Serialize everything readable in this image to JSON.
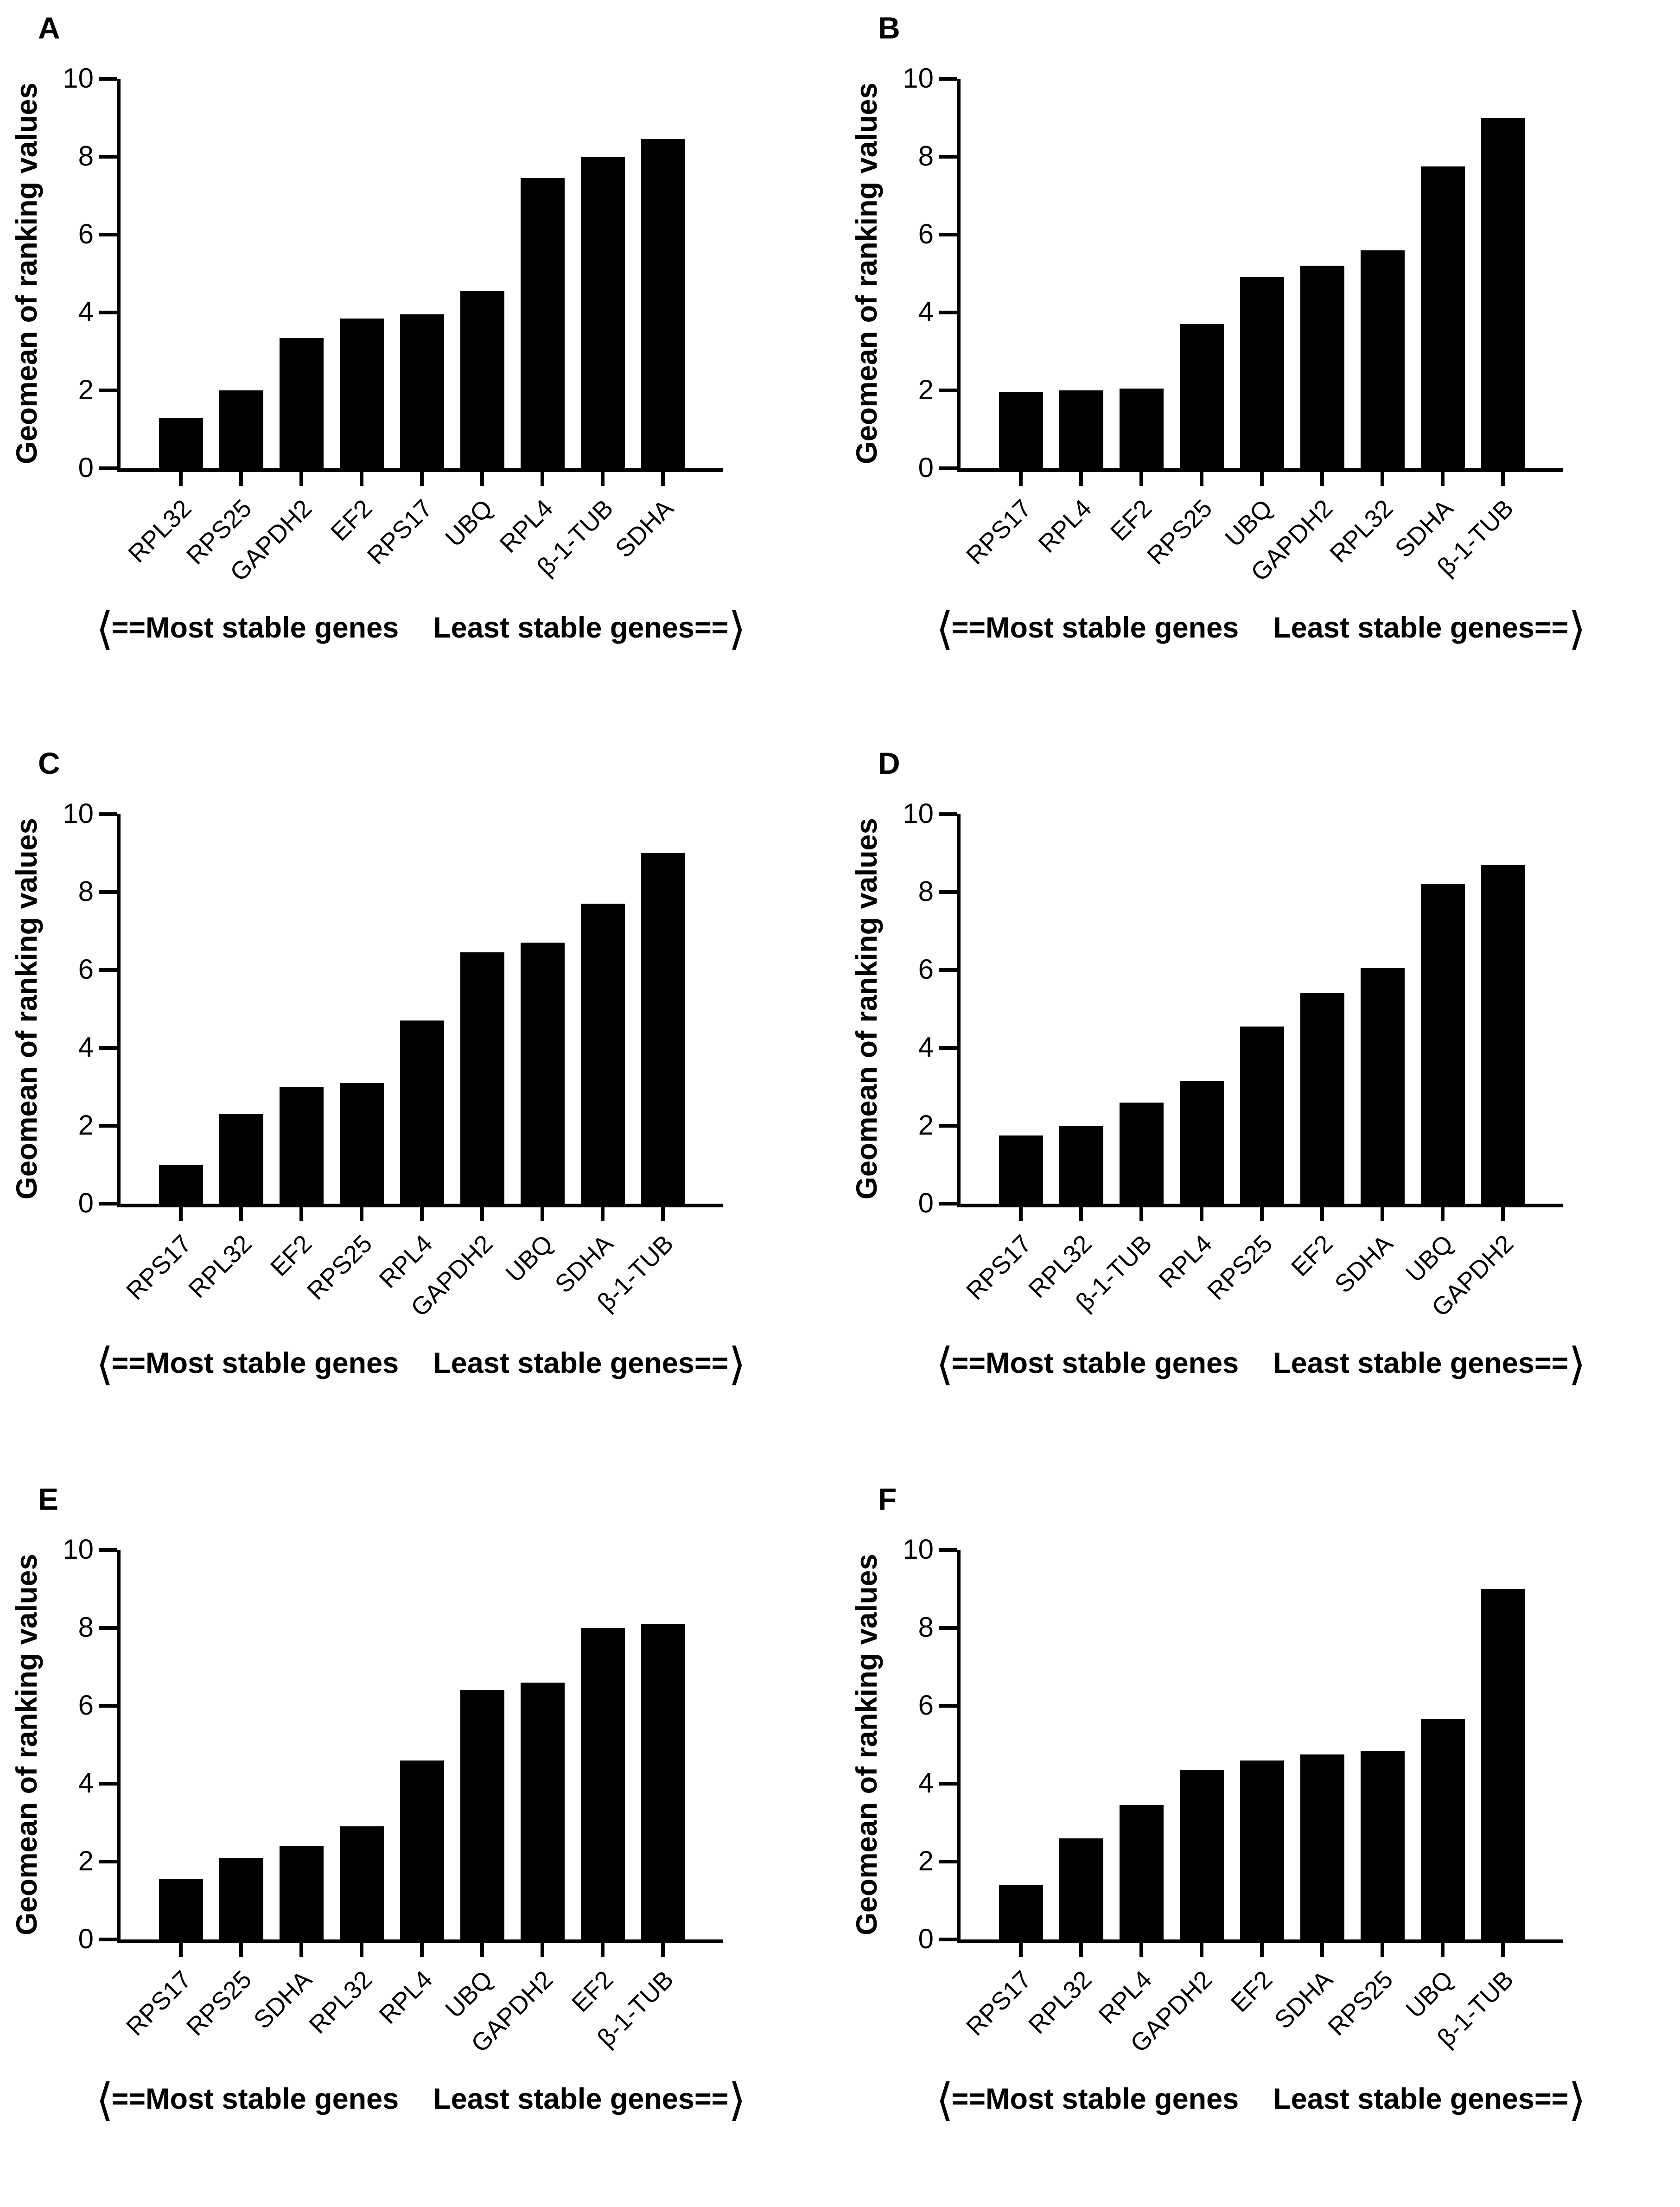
{
  "figure": {
    "footer": {
      "left_bracket": "⟨",
      "left_text": "==Most stable genes",
      "right_text": "Least stable genes==",
      "right_bracket": "⟩"
    },
    "bar_color": "#000000",
    "background_color": "#ffffff",
    "text_color": "#000000"
  },
  "chart_data": [
    {
      "type": "bar",
      "panel_label": "A",
      "ylabel": "Geomean of ranking values",
      "xlabel": "",
      "ylim": [
        0,
        10
      ],
      "yticks": [
        0,
        2,
        4,
        6,
        8,
        10
      ],
      "grid": false,
      "legend": "none",
      "categories": [
        "RPL32",
        "RPS25",
        "GAPDH2",
        "EF2",
        "RPS17",
        "UBQ",
        "RPL4",
        "β-1-TUB",
        "SDHA"
      ],
      "values": [
        1.3,
        2.0,
        3.35,
        3.85,
        3.95,
        4.55,
        7.45,
        8.0,
        8.45
      ],
      "annotation": "⟨==Most stable genes   Least stable genes==⟩"
    },
    {
      "type": "bar",
      "panel_label": "B",
      "ylabel": "Geomean of ranking values",
      "xlabel": "",
      "ylim": [
        0,
        10
      ],
      "yticks": [
        0,
        2,
        4,
        6,
        8,
        10
      ],
      "grid": false,
      "legend": "none",
      "categories": [
        "RPS17",
        "RPL4",
        "EF2",
        "RPS25",
        "UBQ",
        "GAPDH2",
        "RPL32",
        "SDHA",
        "β-1-TUB"
      ],
      "values": [
        1.95,
        2.0,
        2.05,
        3.7,
        4.9,
        5.2,
        5.6,
        7.75,
        9.0
      ],
      "annotation": "⟨==Most stable genes   Least stable genes==⟩"
    },
    {
      "type": "bar",
      "panel_label": "C",
      "ylabel": "Geomean of ranking values",
      "xlabel": "",
      "ylim": [
        0,
        10
      ],
      "yticks": [
        0,
        2,
        4,
        6,
        8,
        10
      ],
      "grid": false,
      "legend": "none",
      "categories": [
        "RPS17",
        "RPL32",
        "EF2",
        "RPS25",
        "RPL4",
        "GAPDH2",
        "UBQ",
        "SDHA",
        "β-1-TUB"
      ],
      "values": [
        1.0,
        2.3,
        3.0,
        3.1,
        4.7,
        6.45,
        6.7,
        7.7,
        9.0
      ],
      "annotation": "⟨==Most stable genes   Least stable genes==⟩"
    },
    {
      "type": "bar",
      "panel_label": "D",
      "ylabel": "Geomean of ranking values",
      "xlabel": "",
      "ylim": [
        0,
        10
      ],
      "yticks": [
        0,
        2,
        4,
        6,
        8,
        10
      ],
      "grid": false,
      "legend": "none",
      "categories": [
        "RPS17",
        "RPL32",
        "β-1-TUB",
        "RPL4",
        "RPS25",
        "EF2",
        "SDHA",
        "UBQ",
        "GAPDH2"
      ],
      "values": [
        1.75,
        2.0,
        2.6,
        3.15,
        4.55,
        5.4,
        6.05,
        8.2,
        8.7
      ],
      "annotation": "⟨==Most stable genes   Least stable genes==⟩"
    },
    {
      "type": "bar",
      "panel_label": "E",
      "ylabel": "Geomean of ranking values",
      "xlabel": "",
      "ylim": [
        0,
        10
      ],
      "yticks": [
        0,
        2,
        4,
        6,
        8,
        10
      ],
      "grid": false,
      "legend": "none",
      "categories": [
        "RPS17",
        "RPS25",
        "SDHA",
        "RPL32",
        "RPL4",
        "UBQ",
        "GAPDH2",
        "EF2",
        "β-1-TUB"
      ],
      "values": [
        1.55,
        2.1,
        2.4,
        2.9,
        4.6,
        6.4,
        6.6,
        8.0,
        8.1
      ],
      "annotation": "⟨==Most stable genes   Least stable genes==⟩"
    },
    {
      "type": "bar",
      "panel_label": "F",
      "ylabel": "Geomean of ranking values",
      "xlabel": "",
      "ylim": [
        0,
        10
      ],
      "yticks": [
        0,
        2,
        4,
        6,
        8,
        10
      ],
      "grid": false,
      "legend": "none",
      "categories": [
        "RPS17",
        "RPL32",
        "RPL4",
        "GAPDH2",
        "EF2",
        "SDHA",
        "RPS25",
        "UBQ",
        "β-1-TUB"
      ],
      "values": [
        1.4,
        2.6,
        3.45,
        4.35,
        4.6,
        4.75,
        4.85,
        5.65,
        9.0
      ],
      "annotation": "⟨==Most stable genes   Least stable genes==⟩"
    }
  ]
}
